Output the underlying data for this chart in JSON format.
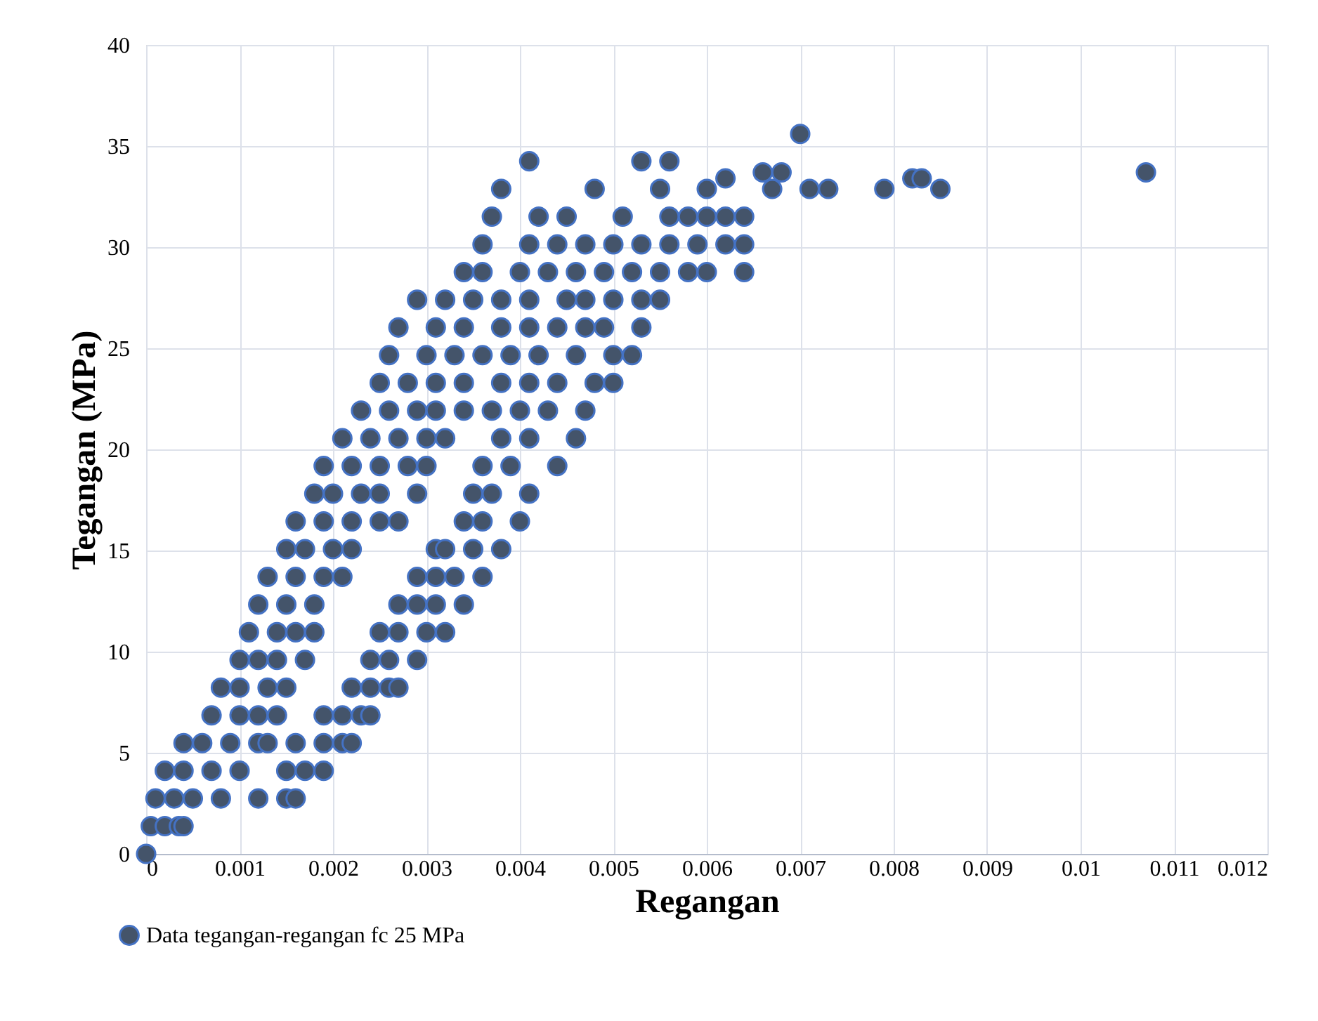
{
  "chart_data": {
    "type": "scatter",
    "xlabel": "Regangan",
    "ylabel": "Tegangan (MPa)",
    "xlim": [
      0,
      0.012
    ],
    "ylim": [
      0,
      40
    ],
    "xticks": [
      0,
      0.001,
      0.002,
      0.003,
      0.004,
      0.005,
      0.006,
      0.007,
      0.008,
      0.009,
      0.01,
      0.011,
      0.012
    ],
    "yticks": [
      0,
      5,
      10,
      15,
      20,
      25,
      30,
      35,
      40
    ],
    "grid": true,
    "legend": "bottom left",
    "marker": "circle",
    "series": [
      {
        "name": "Data tegangan-regangan fc 25 MPa",
        "color": "#44546a",
        "x": [
          0,
          5e-05,
          0.0002,
          0.00035,
          0.0004,
          0.0001,
          0.0003,
          0.0005,
          0.0008,
          0.0012,
          0.0015,
          0.0016,
          0.0002,
          0.0004,
          0.0007,
          0.001,
          0.0015,
          0.0017,
          0.0019,
          0.0004,
          0.0006,
          0.0009,
          0.0012,
          0.0013,
          0.0016,
          0.0019,
          0.0021,
          0.0022,
          0.0007,
          0.001,
          0.0012,
          0.0014,
          0.0019,
          0.0021,
          0.0023,
          0.0024,
          0.0008,
          0.001,
          0.0013,
          0.0015,
          0.0022,
          0.0024,
          0.0026,
          0.0027,
          0.001,
          0.0012,
          0.0014,
          0.0017,
          0.0024,
          0.0026,
          0.0029,
          0.0011,
          0.0014,
          0.0016,
          0.0018,
          0.0025,
          0.0027,
          0.003,
          0.0032,
          0.0012,
          0.0015,
          0.0018,
          0.0027,
          0.0029,
          0.0031,
          0.0034,
          0.0013,
          0.0016,
          0.0019,
          0.0021,
          0.0029,
          0.0031,
          0.0033,
          0.0036,
          0.0015,
          0.0017,
          0.002,
          0.0022,
          0.0031,
          0.0032,
          0.0035,
          0.0038,
          0.0016,
          0.0019,
          0.0022,
          0.0025,
          0.0027,
          0.0034,
          0.0036,
          0.004,
          0.0018,
          0.002,
          0.0023,
          0.0025,
          0.0029,
          0.0035,
          0.0037,
          0.0041,
          0.0019,
          0.0022,
          0.0025,
          0.0028,
          0.003,
          0.0036,
          0.0039,
          0.0044,
          0.0021,
          0.0024,
          0.0027,
          0.003,
          0.0032,
          0.0038,
          0.0041,
          0.0046,
          0.0023,
          0.0026,
          0.0029,
          0.0031,
          0.0034,
          0.0037,
          0.004,
          0.0043,
          0.0047,
          0.0025,
          0.0028,
          0.0031,
          0.0034,
          0.0038,
          0.0041,
          0.0044,
          0.0048,
          0.005,
          0.0026,
          0.003,
          0.0033,
          0.0036,
          0.0039,
          0.0042,
          0.0046,
          0.005,
          0.0052,
          0.0027,
          0.0031,
          0.0034,
          0.0038,
          0.0041,
          0.0044,
          0.0047,
          0.0049,
          0.0053,
          0.0029,
          0.0032,
          0.0035,
          0.0038,
          0.0041,
          0.0045,
          0.0047,
          0.005,
          0.0053,
          0.0055,
          0.0034,
          0.0036,
          0.004,
          0.0043,
          0.0046,
          0.0049,
          0.0052,
          0.0055,
          0.0058,
          0.006,
          0.0064,
          0.0036,
          0.0041,
          0.0044,
          0.0047,
          0.005,
          0.0053,
          0.0056,
          0.0059,
          0.0062,
          0.0064,
          0.0037,
          0.0042,
          0.0045,
          0.0051,
          0.0056,
          0.0058,
          0.006,
          0.0062,
          0.0064,
          0.0038,
          0.0048,
          0.0055,
          0.006,
          0.0067,
          0.0071,
          0.0073,
          0.0079,
          0.0085,
          0.0041,
          0.0053,
          0.0056,
          0.0062,
          0.0066,
          0.0068,
          0.0082,
          0.0083,
          0.0107,
          0.007
        ],
        "values": [
          0,
          1.37,
          1.37,
          1.37,
          1.37,
          2.74,
          2.74,
          2.74,
          2.74,
          2.74,
          2.74,
          2.74,
          4.11,
          4.11,
          4.11,
          4.11,
          4.11,
          4.11,
          4.11,
          5.48,
          5.48,
          5.48,
          5.48,
          5.48,
          5.48,
          5.48,
          5.48,
          5.48,
          6.85,
          6.85,
          6.85,
          6.85,
          6.85,
          6.85,
          6.85,
          6.85,
          8.22,
          8.22,
          8.22,
          8.22,
          8.22,
          8.22,
          8.22,
          8.22,
          9.59,
          9.59,
          9.59,
          9.59,
          9.59,
          9.59,
          9.59,
          10.96,
          10.96,
          10.96,
          10.96,
          10.96,
          10.96,
          10.96,
          10.96,
          12.33,
          12.33,
          12.33,
          12.33,
          12.33,
          12.33,
          12.33,
          13.7,
          13.7,
          13.7,
          13.7,
          13.7,
          13.7,
          13.7,
          13.7,
          15.07,
          15.07,
          15.07,
          15.07,
          15.07,
          15.07,
          15.07,
          15.07,
          16.44,
          16.44,
          16.44,
          16.44,
          16.44,
          16.44,
          16.44,
          16.44,
          17.81,
          17.81,
          17.81,
          17.81,
          17.81,
          17.81,
          17.81,
          17.81,
          19.18,
          19.18,
          19.18,
          19.18,
          19.18,
          19.18,
          19.18,
          19.18,
          20.55,
          20.55,
          20.55,
          20.55,
          20.55,
          20.55,
          20.55,
          20.55,
          21.92,
          21.92,
          21.92,
          21.92,
          21.92,
          21.92,
          21.92,
          21.92,
          21.92,
          23.29,
          23.29,
          23.29,
          23.29,
          23.29,
          23.29,
          23.29,
          23.29,
          23.29,
          24.66,
          24.66,
          24.66,
          24.66,
          24.66,
          24.66,
          24.66,
          24.66,
          24.66,
          26.03,
          26.03,
          26.03,
          26.03,
          26.03,
          26.03,
          26.03,
          26.03,
          26.03,
          27.4,
          27.4,
          27.4,
          27.4,
          27.4,
          27.4,
          27.4,
          27.4,
          27.4,
          27.4,
          28.77,
          28.77,
          28.77,
          28.77,
          28.77,
          28.77,
          28.77,
          28.77,
          28.77,
          28.77,
          28.77,
          30.14,
          30.14,
          30.14,
          30.14,
          30.14,
          30.14,
          30.14,
          30.14,
          30.14,
          30.14,
          31.51,
          31.51,
          31.51,
          31.51,
          31.51,
          31.51,
          31.51,
          31.51,
          31.51,
          32.88,
          32.88,
          32.88,
          32.88,
          32.88,
          32.88,
          32.88,
          32.88,
          32.88,
          34.25,
          34.25,
          34.25,
          33.4,
          33.7,
          33.7,
          33.4,
          33.4,
          33.7,
          35.6
        ]
      }
    ]
  }
}
